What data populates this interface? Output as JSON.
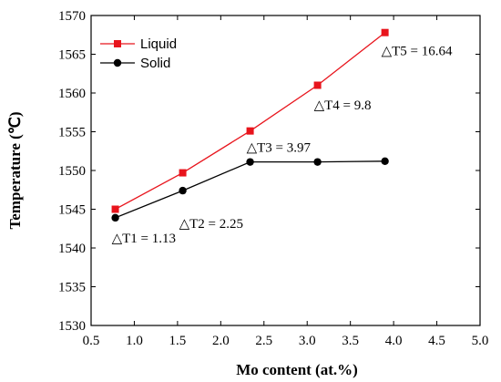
{
  "chart_data": {
    "type": "line",
    "title": "",
    "xlabel": "Mo content (at.%)",
    "ylabel": "Temperature (℃)",
    "xlim": [
      0.5,
      5.0
    ],
    "ylim": [
      1530,
      1570
    ],
    "x_ticks": [
      "0.5",
      "1.0",
      "1.5",
      "2.0",
      "2.5",
      "3.0",
      "3.5",
      "4.0",
      "4.5",
      "5.0"
    ],
    "y_ticks": [
      "1530",
      "1535",
      "1540",
      "1545",
      "1550",
      "1555",
      "1560",
      "1565",
      "1570"
    ],
    "grid": false,
    "legend_position": "top-left",
    "series": [
      {
        "name": "Liquid",
        "color": "#e8141c",
        "marker": "square",
        "x": [
          0.78,
          1.56,
          2.34,
          3.12,
          3.9
        ],
        "y": [
          1545.0,
          1549.7,
          1555.1,
          1561.0,
          1567.8
        ]
      },
      {
        "name": "Solid",
        "color": "#000000",
        "marker": "circle",
        "x": [
          0.78,
          1.56,
          2.34,
          3.12,
          3.9
        ],
        "y": [
          1543.9,
          1547.4,
          1551.1,
          1551.1,
          1551.2
        ]
      }
    ],
    "annotations": [
      {
        "text": "△T1 = 1.13",
        "x": 0.78,
        "y": 1541.3
      },
      {
        "text": "△T2 = 2.25",
        "x": 1.56,
        "y": 1543.2
      },
      {
        "text": "△T3 = 3.97",
        "x": 2.34,
        "y": 1553.0
      },
      {
        "text": "△T4 = 9.8",
        "x": 3.12,
        "y": 1558.5
      },
      {
        "text": "△T5 = 16.64",
        "x": 3.9,
        "y": 1565.5
      }
    ]
  }
}
